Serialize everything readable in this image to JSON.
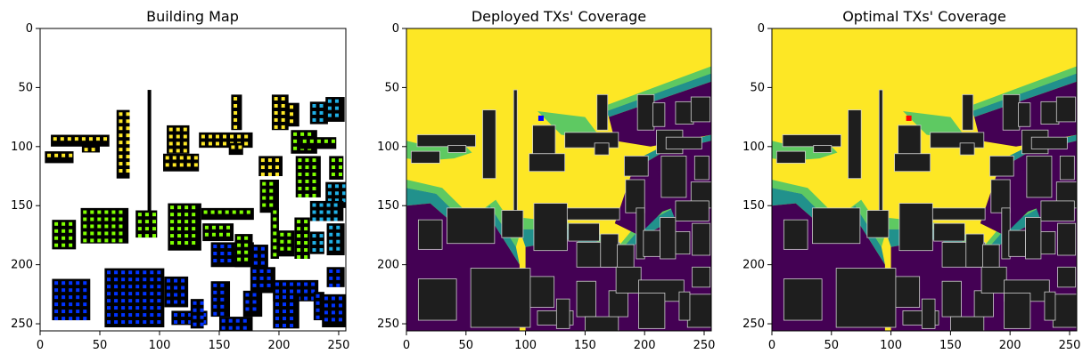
{
  "chart_data": [
    {
      "type": "heatmap",
      "title": "Building Map",
      "xlabel": "",
      "ylabel": "",
      "xlim": [
        0,
        256
      ],
      "ylim": [
        256,
        0
      ],
      "xticks": [
        0,
        50,
        100,
        150,
        200,
        250
      ],
      "yticks": [
        0,
        50,
        100,
        150,
        200,
        250
      ],
      "background": "#ffffff",
      "building_color": "#000000",
      "marker_colors": [
        "#fde725",
        "#7fff00",
        "#1fb0e6",
        "#0033ff"
      ]
    },
    {
      "type": "heatmap",
      "title": "Deployed TXs' Coverage",
      "xlabel": "",
      "ylabel": "",
      "xlim": [
        0,
        256
      ],
      "ylim": [
        256,
        0
      ],
      "xticks": [
        0,
        50,
        100,
        150,
        200,
        250
      ],
      "yticks": [
        0,
        50,
        100,
        150,
        200,
        250
      ],
      "colormap": [
        "#440154",
        "#21918c",
        "#5ec962",
        "#fde725"
      ],
      "building_color": "#1e1e1e",
      "tx_marker": {
        "x": 113,
        "y": 76,
        "color": "#0000ff"
      }
    },
    {
      "type": "heatmap",
      "title": "Optimal TXs' Coverage",
      "xlabel": "",
      "ylabel": "",
      "xlim": [
        0,
        256
      ],
      "ylim": [
        256,
        0
      ],
      "xticks": [
        0,
        50,
        100,
        150,
        200,
        250
      ],
      "yticks": [
        0,
        50,
        100,
        150,
        200,
        250
      ],
      "colormap": [
        "#440154",
        "#21918c",
        "#5ec962",
        "#fde725"
      ],
      "building_color": "#1e1e1e",
      "tx_marker": {
        "x": 115,
        "y": 76,
        "color": "#ff0000"
      }
    }
  ]
}
